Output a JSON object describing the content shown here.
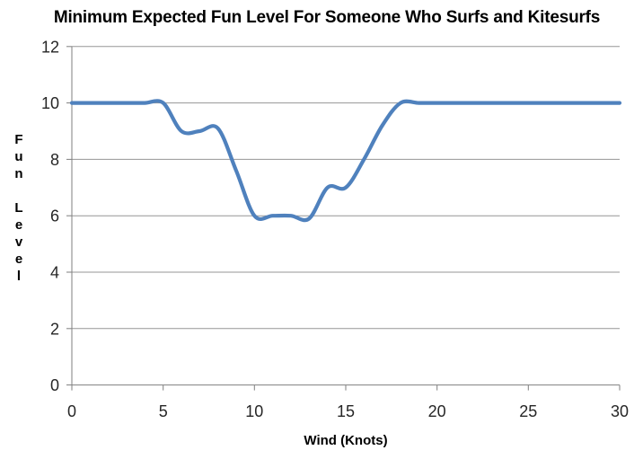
{
  "chart_data": {
    "type": "line",
    "title": "Minimum Expected Fun Level For Someone Who Surfs and Kitesurfs",
    "xlabel": "Wind (Knots)",
    "ylabel": "Fun Level",
    "x": [
      0,
      1,
      2,
      3,
      4,
      5,
      6,
      7,
      8,
      9,
      10,
      11,
      12,
      13,
      14,
      15,
      16,
      17,
      18,
      19,
      20,
      21,
      22,
      23,
      24,
      25,
      26,
      27,
      28,
      29,
      30
    ],
    "series": [
      {
        "name": "Minimum Expected Fun Level",
        "values": [
          10,
          10,
          10,
          10,
          10,
          10,
          9,
          9,
          9.1,
          7.6,
          6,
          6,
          6,
          5.9,
          7,
          7,
          8,
          9.2,
          10,
          10,
          10,
          10,
          10,
          10,
          10,
          10,
          10,
          10,
          10,
          10,
          10
        ]
      }
    ],
    "xlim": [
      0,
      30
    ],
    "ylim": [
      0,
      12
    ],
    "x_ticks": [
      0,
      5,
      10,
      15,
      20,
      25,
      30
    ],
    "y_ticks": [
      0,
      2,
      4,
      6,
      8,
      10,
      12
    ],
    "grid": "horizontal",
    "legend": "none",
    "smooth": true
  },
  "colors": {
    "line": "#4F81BD",
    "grid": "#969696",
    "axis": "#7F7F7F",
    "tick_label": "#262626",
    "background": "#FFFFFF"
  }
}
